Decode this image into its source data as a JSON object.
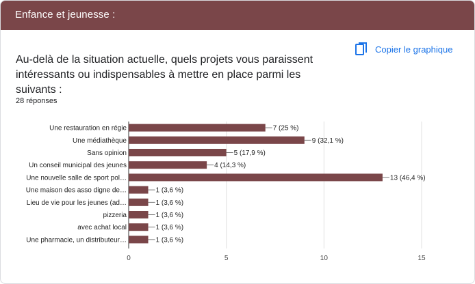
{
  "header": {
    "title": "Enfance et jeunesse :"
  },
  "question": {
    "text": "Au-delà de la situation actuelle, quels projets vous paraissent intéressants ou indispensables à mettre en place parmi les suivants :"
  },
  "copy_button": {
    "label": "Copier le graphique",
    "icon": "copy-icon"
  },
  "responses": {
    "label": "28 réponses"
  },
  "colors": {
    "header_bg": "#7a4649",
    "bar": "#7a4649",
    "accent": "#1a73e8"
  },
  "chart_data": {
    "type": "bar",
    "orientation": "horizontal",
    "categories": [
      "Une restauration en régie",
      "Une médiathèque",
      "Sans opinion",
      "Un conseil municipal des jeunes",
      "Une nouvelle salle de sport pol…",
      "Une maison des asso digne de…",
      "Lieu de vie pour les jeunes (ad…",
      "pizzeria",
      "avec achat local",
      "Une pharmacie, un distributeur…"
    ],
    "values": [
      7,
      9,
      5,
      4,
      13,
      1,
      1,
      1,
      1,
      1
    ],
    "data_labels": [
      "7 (25 %)",
      "9 (32,1 %)",
      "5 (17,9 %)",
      "4 (14,3 %)",
      "13 (46,4 %)",
      "1 (3,6 %)",
      "1 (3,6 %)",
      "1 (3,6 %)",
      "1 (3,6 %)",
      "1 (3,6 %)"
    ],
    "xlim": [
      0,
      15
    ],
    "xticks": [
      0,
      5,
      10,
      15
    ],
    "grid": true
  }
}
